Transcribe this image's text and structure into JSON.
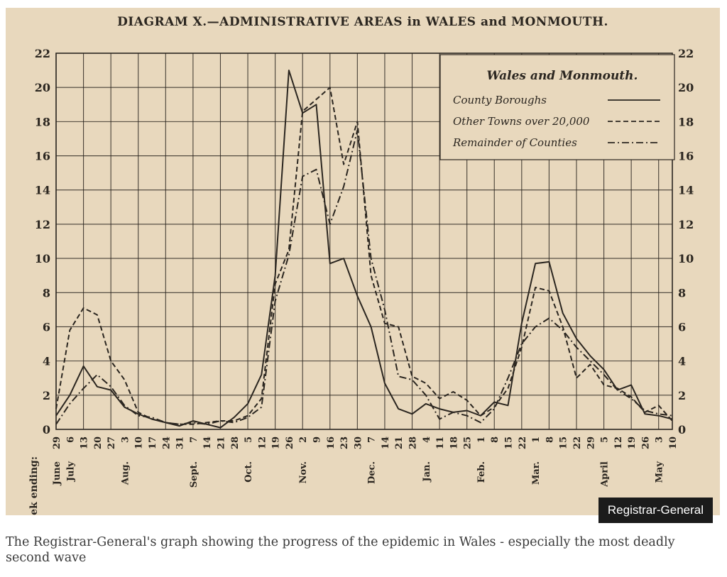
{
  "chart_data": {
    "type": "line",
    "title": "DIAGRAM X.—ADMINISTRATIVE AREAS in WALES and MONMOUTH.",
    "legend_title": "Wales and Monmouth.",
    "legend_position": "top-right",
    "grid": true,
    "xlabel": "Week ending:",
    "ylim": [
      0,
      22
    ],
    "y_ticks": [
      "0",
      "2",
      "4",
      "6",
      "8",
      "10",
      "12",
      "14",
      "16",
      "18",
      "20",
      "22"
    ],
    "x_ticks": [
      "29",
      "6",
      "13",
      "20",
      "27",
      "3",
      "10",
      "17",
      "24",
      "31",
      "7",
      "14",
      "21",
      "28",
      "5",
      "12",
      "19",
      "26",
      "2",
      "9",
      "16",
      "23",
      "30",
      "7",
      "14",
      "21",
      "28",
      "4",
      "11",
      "18",
      "25",
      "1",
      "8",
      "15",
      "22",
      "1",
      "8",
      "15",
      "22",
      "29",
      "5",
      "12",
      "19",
      "26",
      "3",
      "10"
    ],
    "month_labels": [
      {
        "label": "June",
        "at": 0
      },
      {
        "label": "July",
        "at": 1
      },
      {
        "label": "Aug.",
        "at": 5
      },
      {
        "label": "Sept.",
        "at": 10
      },
      {
        "label": "Oct.",
        "at": 14
      },
      {
        "label": "Nov.",
        "at": 18
      },
      {
        "label": "Dec.",
        "at": 23
      },
      {
        "label": "Jan.",
        "at": 27
      },
      {
        "label": "Feb.",
        "at": 31
      },
      {
        "label": "Mar.",
        "at": 35
      },
      {
        "label": "April",
        "at": 40
      },
      {
        "label": "May",
        "at": 44
      }
    ],
    "series": [
      {
        "name": "County Boroughs",
        "style": "solid",
        "values": [
          0.8,
          2.0,
          3.7,
          2.5,
          2.3,
          1.3,
          0.9,
          0.6,
          0.4,
          0.2,
          0.5,
          0.3,
          0.1,
          0.7,
          1.5,
          3.2,
          9.0,
          21.0,
          18.5,
          19.0,
          9.7,
          10.0,
          7.8,
          6.0,
          2.7,
          1.2,
          0.9,
          1.5,
          1.2,
          1.0,
          1.1,
          0.8,
          1.6,
          1.4,
          6.2,
          9.7,
          9.8,
          6.8,
          5.3,
          4.3,
          3.5,
          2.3,
          2.6,
          0.9,
          0.8,
          0.6
        ]
      },
      {
        "name": "Other Towns over 20,000",
        "style": "dashed",
        "values": [
          1.2,
          5.8,
          7.1,
          6.7,
          4.0,
          2.9,
          1.0,
          0.6,
          0.4,
          0.3,
          0.3,
          0.4,
          0.5,
          0.5,
          0.8,
          1.8,
          8.5,
          10.5,
          18.6,
          19.3,
          20.0,
          15.5,
          18.0,
          9.0,
          6.2,
          6.0,
          3.1,
          2.7,
          1.8,
          2.2,
          1.7,
          0.8,
          1.3,
          2.4,
          4.8,
          8.3,
          8.1,
          6.0,
          3.0,
          3.8,
          2.6,
          2.4,
          1.9,
          1.0,
          1.4,
          0.5
        ]
      },
      {
        "name": "Remainder of Counties",
        "style": "dash-dot",
        "values": [
          0.3,
          1.5,
          2.4,
          3.2,
          2.5,
          1.4,
          0.8,
          0.7,
          0.4,
          0.3,
          0.4,
          0.3,
          0.5,
          0.4,
          0.7,
          1.3,
          7.5,
          10.2,
          14.8,
          15.2,
          12.0,
          14.2,
          17.5,
          10.0,
          7.0,
          3.1,
          2.9,
          2.0,
          0.6,
          1.0,
          0.8,
          0.4,
          1.2,
          3.0,
          5.0,
          6.0,
          6.5,
          5.8,
          4.8,
          4.0,
          3.2,
          2.3,
          1.8,
          1.1,
          0.9,
          0.8
        ]
      }
    ]
  },
  "credit": "Registrar-General",
  "caption": "The Registrar-General's graph showing the progress of the epidemic in Wales - especially the most deadly second wave",
  "colors": {
    "paper": "#e8d8bd",
    "ink": "#2b2620",
    "badge": "#1b1b1b"
  }
}
